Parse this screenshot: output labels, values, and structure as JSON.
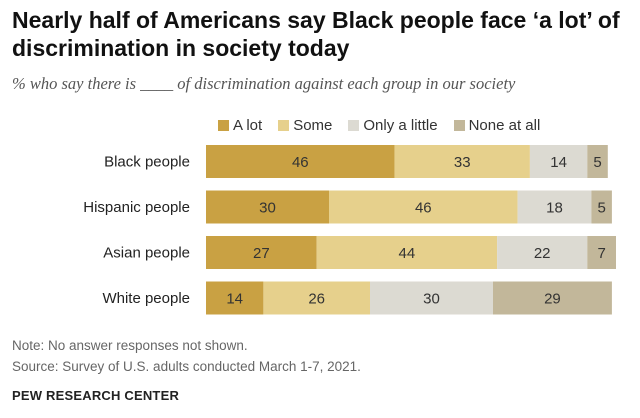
{
  "title": "Nearly half of Americans say Black people face ‘a lot’ of discrimination in society today",
  "subtitle": "% who say there is ____ of discrimination against each group in our society",
  "notes": {
    "note": "Note: No answer responses not shown.",
    "source": "Source: Survey of U.S. adults conducted March 1-7, 2021."
  },
  "brand": "PEW RESEARCH CENTER",
  "colors": {
    "a_lot": "#c9a143",
    "some": "#e6d08c",
    "only_a_little": "#dcdad2",
    "none_at_all": "#c2b79a"
  },
  "chart_data": {
    "type": "bar",
    "orientation": "horizontal",
    "stacked": true,
    "categories": [
      "Black people",
      "Hispanic people",
      "Asian people",
      "White people"
    ],
    "series": [
      {
        "name": "A lot",
        "values": [
          46,
          30,
          27,
          14
        ]
      },
      {
        "name": "Some",
        "values": [
          33,
          46,
          44,
          26
        ]
      },
      {
        "name": "Only a little",
        "values": [
          14,
          18,
          22,
          30
        ]
      },
      {
        "name": "None at all",
        "values": [
          5,
          5,
          7,
          29
        ]
      }
    ],
    "title": "Nearly half of Americans say Black people face ‘a lot’ of discrimination in society today",
    "xlabel": "",
    "ylabel": "",
    "xlim": [
      0,
      100
    ],
    "legend": "top"
  }
}
